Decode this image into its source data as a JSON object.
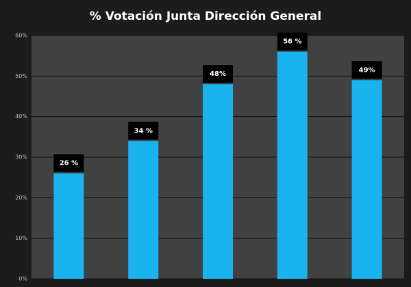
{
  "chart_data": {
    "type": "bar",
    "title": "% Votación Junta Dirección General",
    "categories": [
      null,
      null,
      null,
      null,
      null
    ],
    "values": [
      26,
      34,
      48,
      56,
      49
    ],
    "value_labels": [
      "26 %",
      "34 %",
      "48%",
      "56 %",
      "49%"
    ],
    "color": "#19b4f0",
    "ylim": [
      0,
      60
    ],
    "yticks": [
      {
        "value": 0,
        "label": "0%"
      },
      {
        "value": 10,
        "label": "10%"
      },
      {
        "value": 20,
        "label": "20%"
      },
      {
        "value": 30,
        "label": "30%"
      },
      {
        "value": 40,
        "label": "40%"
      },
      {
        "value": 50,
        "label": "50%"
      },
      {
        "value": 60,
        "label": "60%"
      }
    ],
    "grid": true
  }
}
